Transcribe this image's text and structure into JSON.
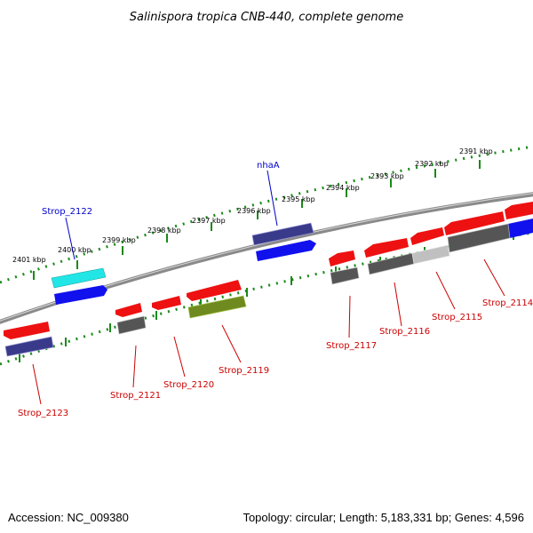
{
  "title": "Salinispora tropica CNB-440, complete genome",
  "accession": "Accession: NC_009380",
  "topology": "Topology: circular; Length: 5,183,331 bp; Genes: 4,596",
  "colors": {
    "backbone": "#888888",
    "ticks": "#1a8a1a",
    "red": "#ee1111",
    "navy": "#3a3a8a",
    "blue": "#1111ee",
    "cyan": "#22e6e6",
    "grey": "#555555",
    "lightgrey": "#c0c0c0",
    "olive": "#6f8a1e",
    "label_red": "#cc0000",
    "label_blue": "#0000cc"
  },
  "kbp_labels": [
    {
      "id": "2401",
      "text": "2401 kbp"
    },
    {
      "id": "2400",
      "text": "2400 kbp"
    },
    {
      "id": "2399",
      "text": "2399 kbp"
    },
    {
      "id": "2398",
      "text": "2398 kbp"
    },
    {
      "id": "2397",
      "text": "2397 kbp"
    },
    {
      "id": "2396",
      "text": "2396 kbp"
    },
    {
      "id": "2395",
      "text": "2395 kbp"
    },
    {
      "id": "2394",
      "text": "2394 kbp"
    },
    {
      "id": "2393",
      "text": "2393 kbp"
    },
    {
      "id": "2392",
      "text": "2392 kbp"
    },
    {
      "id": "2391",
      "text": "2391 kbp"
    }
  ],
  "gene_labels": [
    {
      "id": "strop2122",
      "text": "Strop_2122",
      "color": "blue"
    },
    {
      "id": "nhaA",
      "text": "nhaA",
      "color": "blue"
    },
    {
      "id": "strop2123",
      "text": "Strop_2123",
      "color": "red"
    },
    {
      "id": "strop2121",
      "text": "Strop_2121",
      "color": "red"
    },
    {
      "id": "strop2120",
      "text": "Strop_2120",
      "color": "red"
    },
    {
      "id": "strop2119",
      "text": "Strop_2119",
      "color": "red"
    },
    {
      "id": "strop2117",
      "text": "Strop_2117",
      "color": "red"
    },
    {
      "id": "strop2116",
      "text": "Strop_2116",
      "color": "red"
    },
    {
      "id": "strop2115",
      "text": "Strop_2115",
      "color": "red"
    },
    {
      "id": "strop2114",
      "text": "Strop_2114",
      "color": "red"
    }
  ]
}
